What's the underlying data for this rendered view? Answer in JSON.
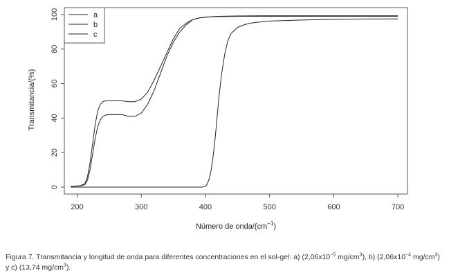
{
  "chart_data": {
    "type": "line",
    "xlabel": "Número de onda/(cm",
    "xlabel_sup": "−1",
    "xlabel_end": ")",
    "ylabel": "Transmitancia/(%)",
    "xlim": [
      180,
      715
    ],
    "ylim": [
      -4,
      104
    ],
    "xticks": [
      200,
      300,
      400,
      500,
      600,
      700
    ],
    "yticks": [
      0,
      20,
      40,
      60,
      80,
      100
    ],
    "grid": false,
    "legend_position": "top-left",
    "series": [
      {
        "name": "a",
        "x": [
          190,
          205,
          212,
          216,
          220,
          224,
          228,
          232,
          236,
          240,
          245,
          250,
          255,
          260,
          270,
          280,
          290,
          300,
          310,
          320,
          330,
          340,
          350,
          360,
          370,
          380,
          390,
          400,
          420,
          450,
          500,
          600,
          700
        ],
        "y": [
          0.5,
          0.7,
          1.5,
          4,
          10,
          19,
          28,
          35,
          39,
          41,
          41.8,
          42,
          42,
          42,
          42,
          41,
          41,
          43,
          48,
          56,
          66,
          76,
          84,
          90,
          94,
          97,
          98,
          98.5,
          98.8,
          99,
          99,
          99,
          99
        ]
      },
      {
        "name": "b",
        "x": [
          190,
          205,
          212,
          216,
          220,
          224,
          228,
          232,
          236,
          240,
          245,
          250,
          255,
          260,
          270,
          280,
          290,
          300,
          310,
          320,
          330,
          340,
          350,
          360,
          370,
          380,
          390,
          400,
          420,
          450,
          500,
          600,
          700
        ],
        "y": [
          0.5,
          0.8,
          2,
          6,
          14,
          25,
          36,
          44,
          48,
          49.5,
          50,
          50,
          50,
          50,
          50,
          49.5,
          49.5,
          51,
          55,
          62,
          70,
          78,
          86,
          92,
          95,
          97,
          98,
          98.5,
          99,
          99.2,
          99.3,
          99.3,
          99.3
        ]
      },
      {
        "name": "c",
        "x": [
          190,
          250,
          300,
          350,
          395,
          400,
          403,
          406,
          409,
          412,
          415,
          418,
          421,
          425,
          430,
          435,
          440,
          450,
          460,
          470,
          480,
          500,
          550,
          600,
          650,
          700
        ],
        "y": [
          0,
          0,
          0,
          0,
          0,
          0.5,
          2,
          5,
          10,
          18,
          28,
          40,
          52,
          65,
          77,
          85,
          89,
          92.5,
          94,
          95,
          95.5,
          96.2,
          96.8,
          97.2,
          97.4,
          97.5
        ]
      }
    ]
  },
  "caption": {
    "p1": "Figura 7. Transmitancia y longitud de onda para diferentes concentraciones en el sol-gel: a) (2,06x10",
    "sup1": "−5",
    "p2": " mg/cm",
    "sup2": "3",
    "p3": "), b) (2,06x10",
    "sup3": "−4",
    "p4": " mg/cm",
    "sup4": "3",
    "p5": ") y c) (13,74 mg/cm",
    "sup5": "3",
    "p6": ")."
  }
}
